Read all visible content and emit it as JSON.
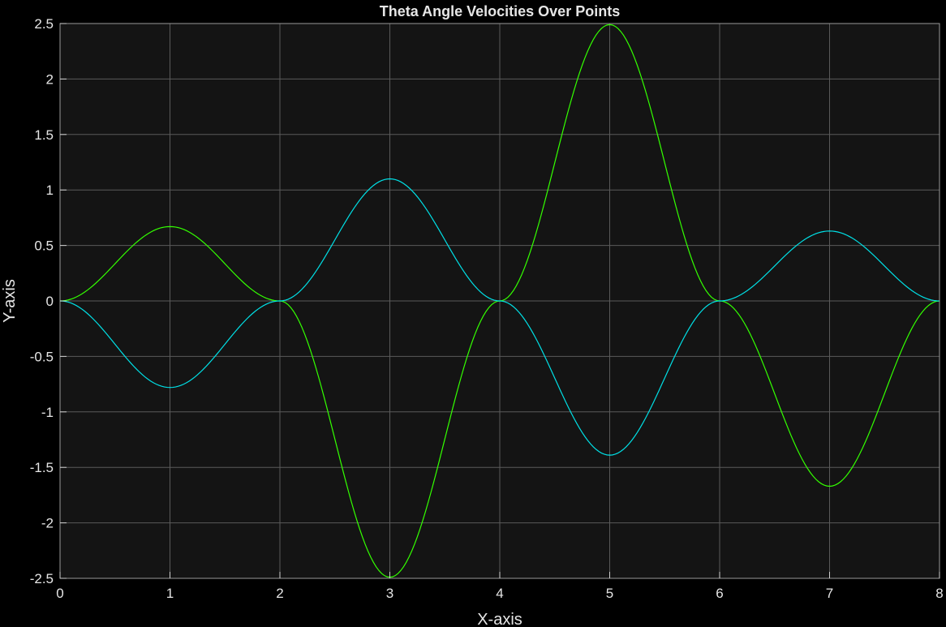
{
  "chart_data": {
    "type": "line",
    "title": "Theta Angle Velocities Over Points",
    "xlabel": "X-axis",
    "ylabel": "Y-axis",
    "xlim": [
      0,
      8
    ],
    "ylim": [
      -2.5,
      2.5
    ],
    "xticks": [
      0,
      1,
      2,
      3,
      4,
      5,
      6,
      7,
      8
    ],
    "yticks": [
      2.5,
      2,
      1.5,
      1,
      0.5,
      0,
      -0.5,
      -1,
      -1.5,
      -2,
      -2.5
    ],
    "grid": true,
    "background_color": "#141414",
    "grid_color": "#5a5a5a",
    "text_color": "#e6e6e6",
    "series": [
      {
        "color": "#33ff00",
        "x": [
          0,
          1,
          2,
          3,
          4,
          5,
          6,
          7,
          8
        ],
        "y": [
          0,
          0.67,
          0,
          -2.49,
          0,
          2.49,
          0,
          -1.67,
          0
        ]
      },
      {
        "color": "#00e0e6",
        "x": [
          0,
          1,
          2,
          3,
          4,
          5,
          6,
          7,
          8
        ],
        "y": [
          0,
          -0.78,
          0,
          1.1,
          0,
          -1.39,
          0,
          0.63,
          0
        ]
      }
    ]
  }
}
